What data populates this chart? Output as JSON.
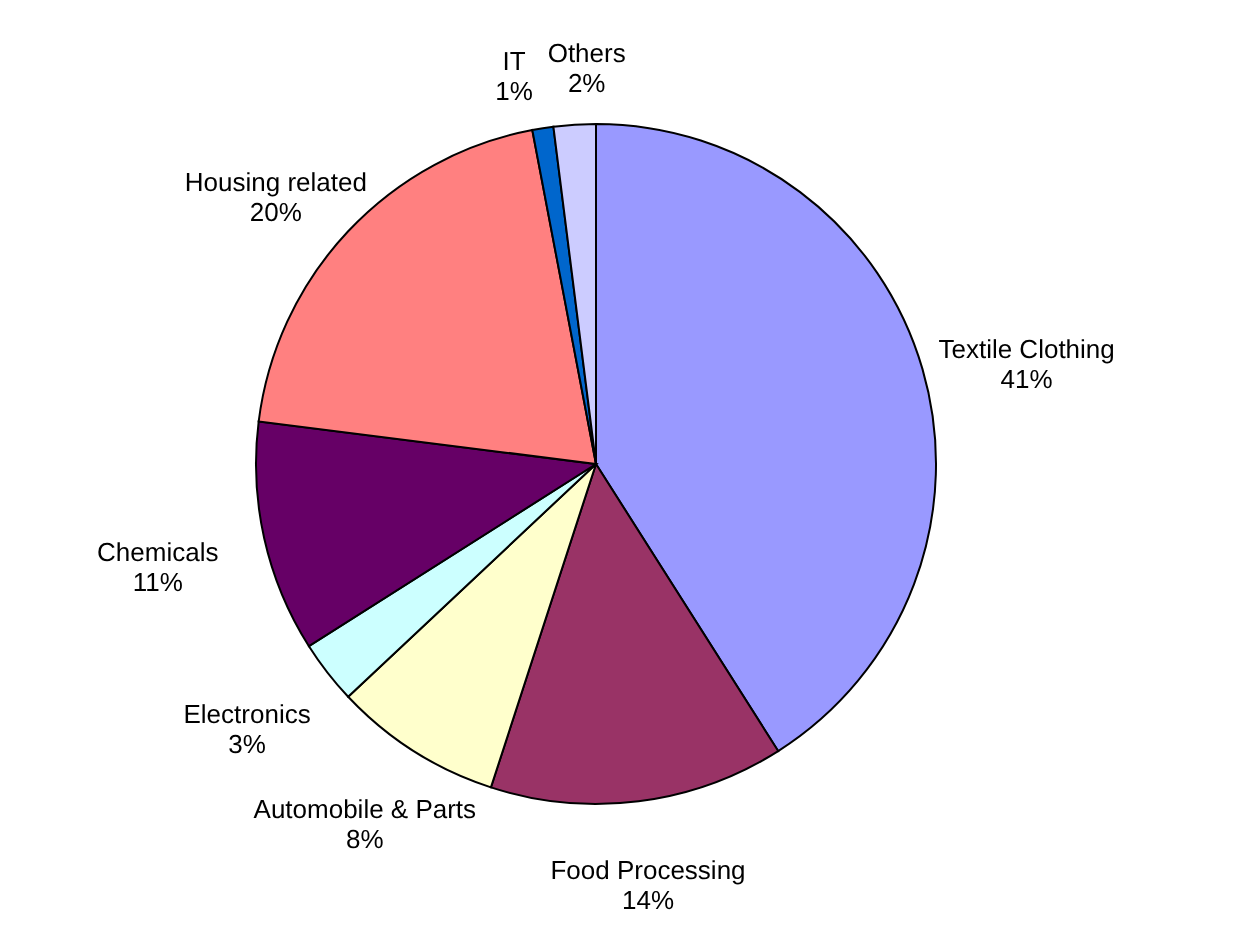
{
  "chart_data": {
    "type": "pie",
    "categories": [
      "Textile Clothing",
      "Food Processing",
      "Automobile & Parts",
      "Electronics",
      "Chemicals",
      "Housing related",
      "IT",
      "Others"
    ],
    "values": [
      41,
      14,
      8,
      3,
      11,
      20,
      1,
      2
    ],
    "value_labels": [
      "41%",
      "14%",
      "8%",
      "3%",
      "11%",
      "20%",
      "1%",
      "2%"
    ],
    "colors": [
      "#9999ff",
      "#993366",
      "#ffffcc",
      "#ccffff",
      "#660066",
      "#ff8080",
      "#0066cc",
      "#ccccff"
    ]
  }
}
